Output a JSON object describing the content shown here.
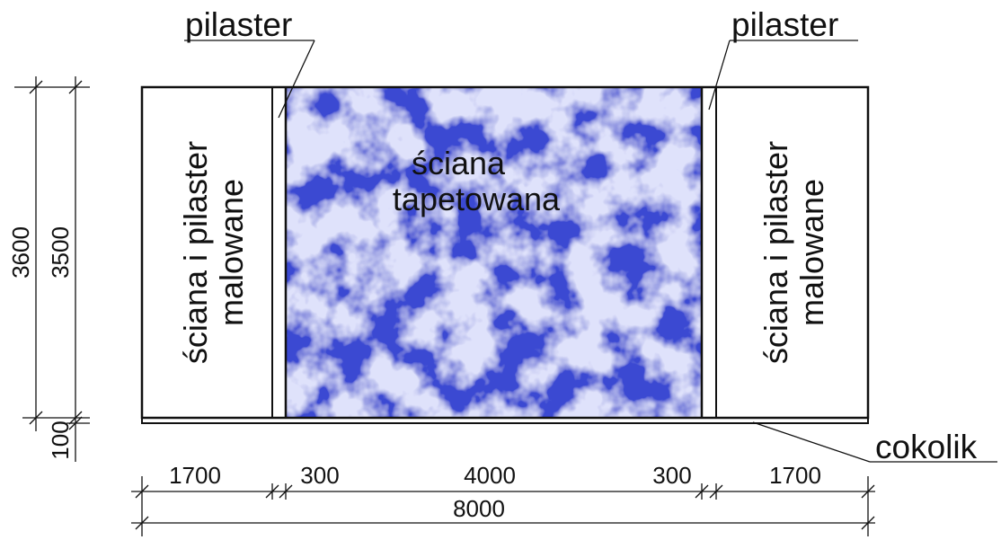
{
  "labels": {
    "pilaster_left": "pilaster",
    "pilaster_right": "pilaster",
    "left_panel": [
      "ściana i pilaster",
      "malowane"
    ],
    "right_panel": [
      "ściana i pilaster",
      "malowane"
    ],
    "center_panel": [
      "ściana",
      "tapetowana"
    ],
    "plinth": "cokolik"
  },
  "dimensions": {
    "heights": {
      "total": "3600",
      "wall": "3500",
      "plinth": "100"
    },
    "widths": [
      "1700",
      "300",
      "4000",
      "300",
      "1700"
    ],
    "overall_width": "8000"
  },
  "colors": {
    "line": "#111111",
    "wallpaper_light": "#dfe2fb",
    "wallpaper_dark": "#3a4ad2"
  }
}
